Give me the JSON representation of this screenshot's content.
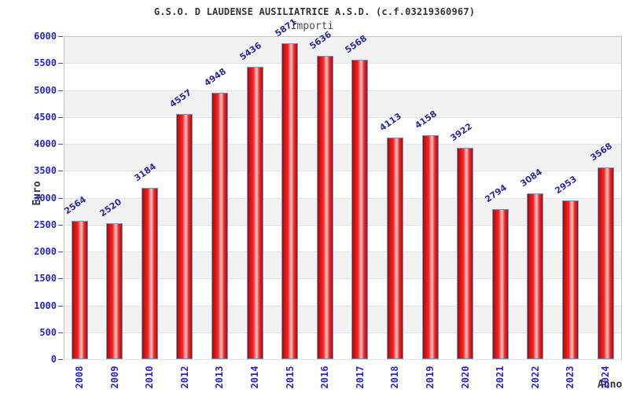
{
  "title": "G.S.O. D LAUDENSE AUSILIATRICE A.S.D. (c.f.03219360967)",
  "subtitle": "Importi",
  "yaxis": {
    "title": "Euro",
    "ticks": [
      6000,
      5500,
      5000,
      4500,
      4000,
      3500,
      3000,
      2500,
      2000,
      1500,
      1000,
      500,
      0
    ]
  },
  "xaxis": {
    "title": "Anno"
  },
  "chart_data": {
    "type": "bar",
    "title": "Importi",
    "categories": [
      "2008",
      "2009",
      "2010",
      "2012",
      "2013",
      "2014",
      "2015",
      "2016",
      "2017",
      "2018",
      "2019",
      "2020",
      "2021",
      "2022",
      "2023",
      "2024"
    ],
    "values": [
      2564,
      2520,
      3184,
      4557,
      4948,
      5436,
      5871,
      5636,
      5568,
      4113,
      4158,
      3922,
      2794,
      3084,
      2953,
      3568
    ],
    "xlabel": "Anno",
    "ylabel": "Euro",
    "ylim": [
      0,
      6000
    ],
    "ytick_step": 500,
    "grid": "alternating-bands",
    "legend_position": "none",
    "data_labels": "rotated above bars"
  },
  "colors": {
    "bar_fill_main": "#e02222",
    "bar_fill_highlight": "#ffc9c9",
    "bar_border": "#54a0dc",
    "tick_text": "#2626cc",
    "value_label_text": "#2a2a99",
    "band_gray": "#f2f2f2",
    "band_white": "#ffffff",
    "gridline": "#e2e2e2",
    "title_text": "#333333",
    "axis_title_text": "#333333"
  }
}
